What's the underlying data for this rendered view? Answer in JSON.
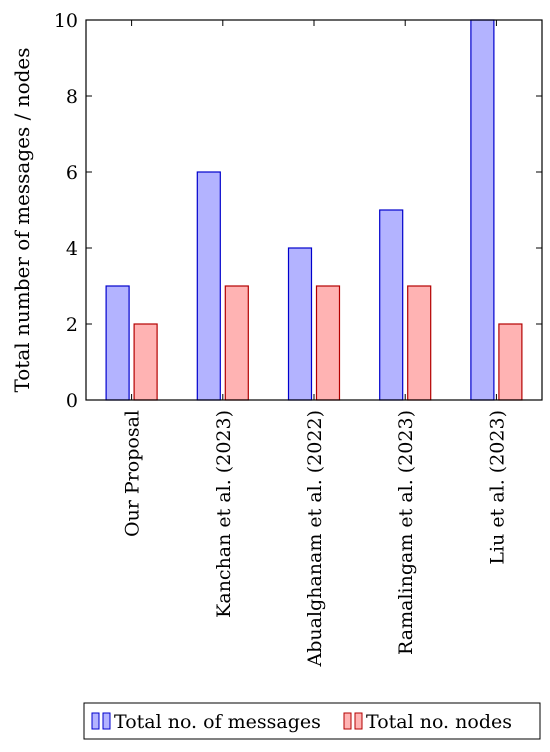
{
  "chart_data": {
    "type": "bar",
    "ylabel": "Total number of messages / nodes",
    "xlabel": "",
    "ylim": [
      0,
      10
    ],
    "yticks": [
      0,
      2,
      4,
      6,
      8,
      10
    ],
    "grid": false,
    "legend_position": "bottom",
    "categories": [
      "Our Proposal",
      "Kanchan et al. (2023)",
      "Abualghanam et al. (2022)",
      "Ramalingam et al. (2023)",
      "Liu et al. (2023)"
    ],
    "series": [
      {
        "name": "Total no. of messages",
        "values": [
          3,
          6,
          4,
          5,
          10
        ],
        "fill": "#b3b3ff",
        "stroke": "#0000cc"
      },
      {
        "name": "Total no. nodes",
        "values": [
          2,
          3,
          3,
          3,
          2
        ],
        "fill": "#ffb3b3",
        "stroke": "#b30000"
      }
    ]
  }
}
